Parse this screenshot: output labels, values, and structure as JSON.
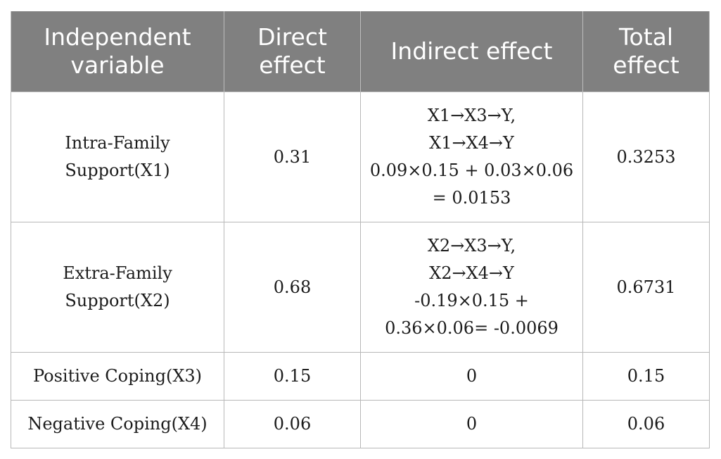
{
  "table": {
    "headers": [
      [
        "Independent",
        "variable"
      ],
      [
        "Direct",
        "effect"
      ],
      [
        "Indirect effect"
      ],
      [
        "Total",
        "effect"
      ]
    ],
    "rows": [
      {
        "variable": [
          "Intra-Family",
          "Support(X1)"
        ],
        "direct": "0.31",
        "indirect": [
          "X1→X3→Y,",
          "X1→X4→Y",
          "0.09×0.15 + 0.03×0.06",
          "= 0.0153"
        ],
        "total": "0.3253"
      },
      {
        "variable": [
          "Extra-Family",
          "Support(X2)"
        ],
        "direct": "0.68",
        "indirect": [
          "X2→X3→Y,",
          "X2→X4→Y",
          "-0.19×0.15 +",
          "0.36×0.06= -0.0069"
        ],
        "total": "0.6731"
      },
      {
        "variable": [
          "Positive Coping(X3)"
        ],
        "direct": "0.15",
        "indirect": [
          "0"
        ],
        "total": "0.15"
      },
      {
        "variable": [
          "Negative Coping(X4)"
        ],
        "direct": "0.06",
        "indirect": [
          "0"
        ],
        "total": "0.06"
      }
    ]
  }
}
